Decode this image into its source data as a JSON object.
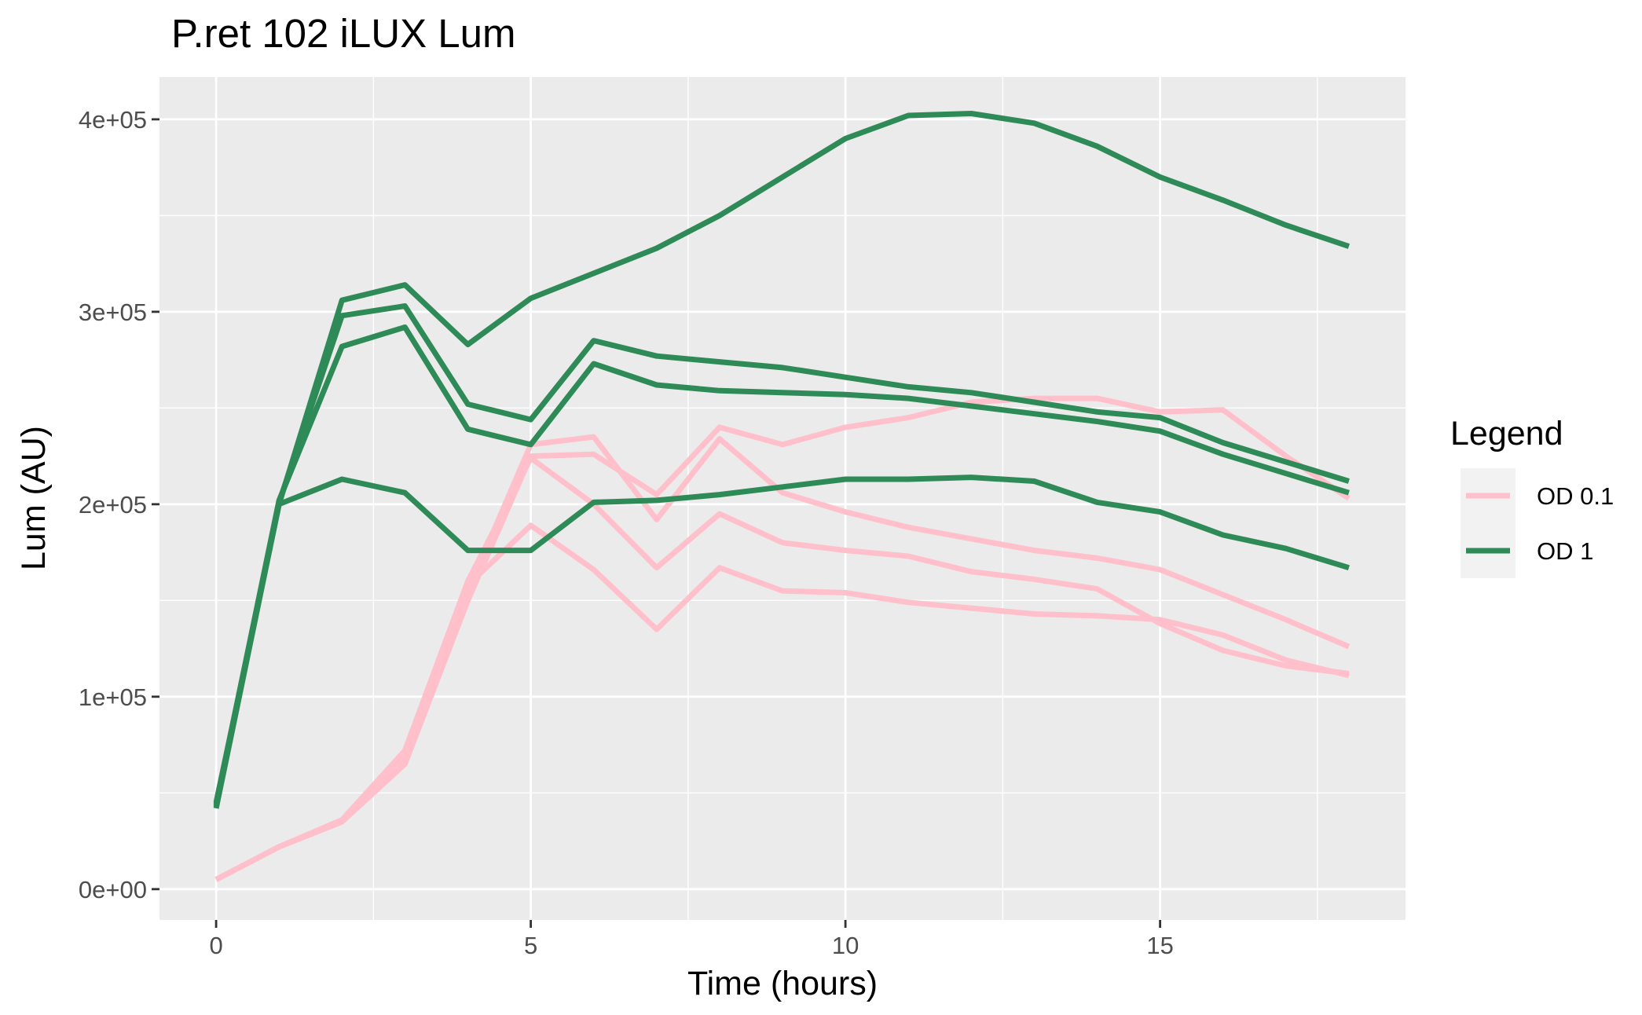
{
  "chart_data": {
    "type": "line",
    "title": "P.ret 102 iLUX Lum",
    "xlabel": "Time (hours)",
    "ylabel": "Lum (AU)",
    "xlim": [
      -0.9,
      18.9
    ],
    "ylim": [
      -16000,
      422000
    ],
    "x_ticks": [
      0,
      5,
      10,
      15
    ],
    "x_tick_labels": [
      "0",
      "5",
      "10",
      "15"
    ],
    "x_minor": [
      2.5,
      7.5,
      12.5,
      17.5
    ],
    "y_ticks": [
      0,
      100000,
      200000,
      300000,
      400000
    ],
    "y_tick_labels": [
      "0e+00",
      "1e+05",
      "2e+05",
      "3e+05",
      "4e+05"
    ],
    "y_minor": [
      50000,
      150000,
      250000,
      350000
    ],
    "grid": true,
    "legend": {
      "title": "Legend",
      "placement": "right"
    },
    "groups": [
      {
        "name": "OD 0.1",
        "color": "#FFC0CB"
      },
      {
        "name": "OD 1",
        "color": "#2E8B57"
      }
    ],
    "x": [
      0,
      1,
      2,
      3,
      4,
      5,
      6,
      7,
      8,
      9,
      10,
      11,
      12,
      13,
      14,
      15,
      16,
      17,
      18
    ],
    "series": [
      {
        "group": "OD 0.1",
        "values": [
          5000,
          22000,
          35000,
          65000,
          150000,
          225000,
          226000,
          205000,
          240000,
          231000,
          240000,
          245000,
          253000,
          255000,
          255000,
          248000,
          249000,
          225000,
          203000
        ]
      },
      {
        "group": "OD 0.1",
        "values": [
          5000,
          22000,
          35000,
          68000,
          155000,
          231000,
          235000,
          192000,
          234000,
          206000,
          196000,
          188000,
          182000,
          176000,
          172000,
          166000,
          153000,
          140000,
          126000
        ]
      },
      {
        "group": "OD 0.1",
        "values": [
          5000,
          22000,
          36000,
          72000,
          160000,
          224000,
          200000,
          167000,
          195000,
          180000,
          176000,
          173000,
          165000,
          161000,
          156000,
          138000,
          124000,
          116000,
          112000
        ]
      },
      {
        "group": "OD 0.1",
        "values": [
          5000,
          22000,
          35000,
          70000,
          158000,
          189000,
          166000,
          135000,
          167000,
          155000,
          154000,
          149000,
          146000,
          143000,
          142000,
          140000,
          132000,
          119000,
          111000
        ]
      },
      {
        "group": "OD 1",
        "values": [
          42000,
          200000,
          306000,
          314000,
          283000,
          307000,
          320000,
          333000,
          350000,
          370000,
          390000,
          402000,
          403000,
          398000,
          386000,
          370000,
          358000,
          345000,
          334000
        ]
      },
      {
        "group": "OD 1",
        "values": [
          43000,
          201000,
          298000,
          303000,
          252000,
          244000,
          285000,
          277000,
          274000,
          271000,
          266000,
          261000,
          258000,
          253000,
          248000,
          245000,
          232000,
          222000,
          212000
        ]
      },
      {
        "group": "OD 1",
        "values": [
          44000,
          202000,
          282000,
          292000,
          239000,
          231000,
          273000,
          262000,
          259000,
          258000,
          257000,
          255000,
          251000,
          247000,
          243000,
          238000,
          226000,
          216000,
          206000
        ]
      },
      {
        "group": "OD 1",
        "values": [
          45000,
          200000,
          213000,
          206000,
          176000,
          176000,
          201000,
          202000,
          205000,
          209000,
          213000,
          213000,
          214000,
          212000,
          201000,
          196000,
          184000,
          177000,
          167000
        ]
      }
    ]
  }
}
